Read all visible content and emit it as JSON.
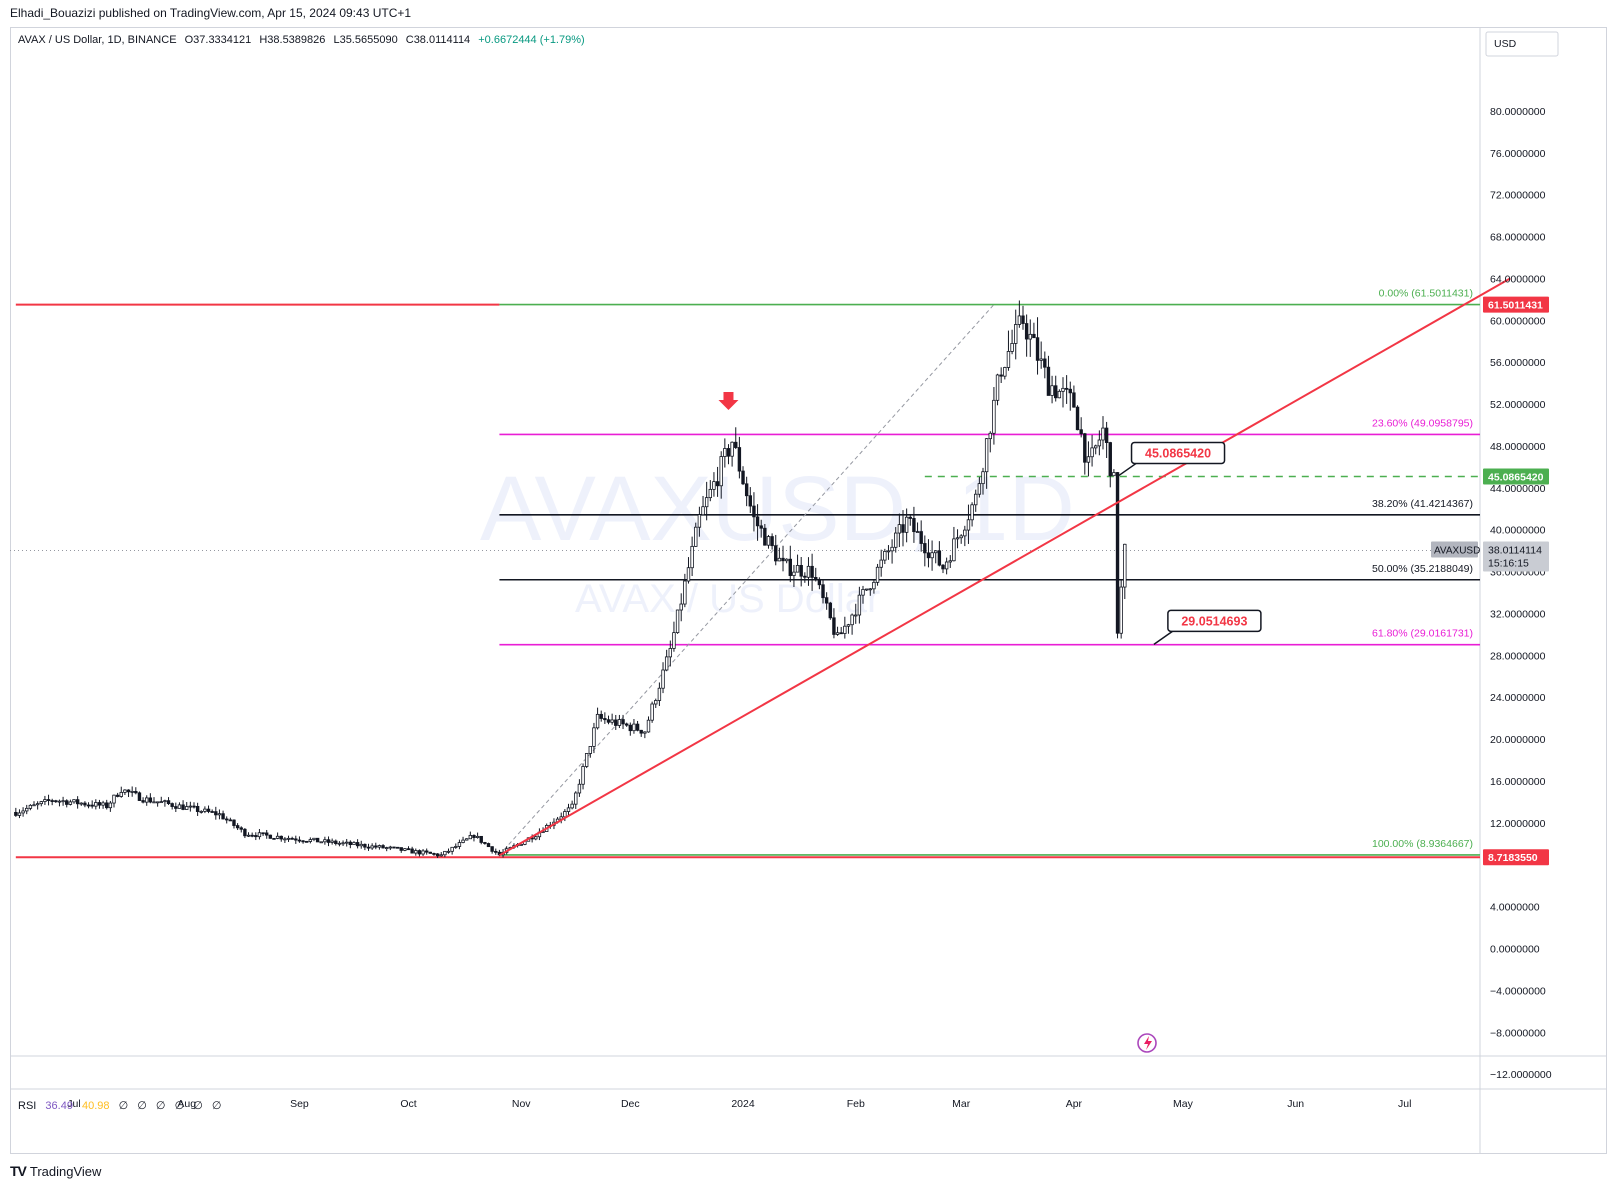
{
  "header": {
    "publisher_line": "Elhadi_Bouazizi published on TradingView.com, Apr 15, 2024 09:43 UTC+1"
  },
  "legend": {
    "symbol": "AVAX / US Dollar, 1D, BINANCE",
    "open": "O37.3334121",
    "high": "H38.5389826",
    "low": "L35.5655090",
    "close": "C38.0114114",
    "change": "+0.6672444 (+1.79%)",
    "change_color": "#089981"
  },
  "watermark": {
    "ticker": "AVAXUSD, 1D",
    "name": "AVAX / US Dollar"
  },
  "currency_label": "USD",
  "chart_data": {
    "type": "candlestick",
    "title": "AVAX / US Dollar, 1D, BINANCE",
    "ylim": [
      -14,
      84
    ],
    "y_ticks": [
      "80.0000000",
      "76.0000000",
      "72.0000000",
      "68.0000000",
      "64.0000000",
      "60.0000000",
      "56.0000000",
      "52.0000000",
      "48.0000000",
      "44.0000000",
      "40.0000000",
      "36.0000000",
      "32.0000000",
      "28.0000000",
      "24.0000000",
      "20.0000000",
      "16.0000000",
      "12.0000000",
      "4.0000000",
      "0.0000000",
      "−4.0000000",
      "−8.0000000",
      "−12.0000000"
    ],
    "y_tick_values": [
      80,
      76,
      72,
      68,
      64,
      60,
      56,
      52,
      48,
      44,
      40,
      36,
      32,
      28,
      24,
      20,
      16,
      12,
      4,
      0,
      -4,
      -8,
      -12
    ],
    "x_ticks": [
      "Jul",
      "Aug",
      "Sep",
      "Oct",
      "Nov",
      "Dec",
      "2024",
      "Feb",
      "Mar",
      "Apr",
      "May",
      "Jun",
      "Jul"
    ],
    "x_tick_dates": [
      "2023-07-01",
      "2023-08-01",
      "2023-09-01",
      "2023-10-01",
      "2023-11-01",
      "2023-12-01",
      "2024-01-01",
      "2024-02-01",
      "2024-03-01",
      "2024-04-01",
      "2024-05-01",
      "2024-06-01",
      "2024-07-01"
    ],
    "date_range": [
      "2023-06-15",
      "2024-07-30"
    ],
    "price_path": [
      {
        "date": "2023-06-15",
        "value": 13.0
      },
      {
        "date": "2023-06-25",
        "value": 14.2
      },
      {
        "date": "2023-07-10",
        "value": 13.6
      },
      {
        "date": "2023-07-14",
        "value": 15.2
      },
      {
        "date": "2023-07-20",
        "value": 14.3
      },
      {
        "date": "2023-08-10",
        "value": 12.8
      },
      {
        "date": "2023-08-17",
        "value": 11.0
      },
      {
        "date": "2023-09-05",
        "value": 10.3
      },
      {
        "date": "2023-09-25",
        "value": 9.6
      },
      {
        "date": "2023-10-10",
        "value": 8.9
      },
      {
        "date": "2023-10-19",
        "value": 10.8
      },
      {
        "date": "2023-10-26",
        "value": 8.94
      },
      {
        "date": "2023-11-05",
        "value": 10.9
      },
      {
        "date": "2023-11-15",
        "value": 13.5
      },
      {
        "date": "2023-11-22",
        "value": 22.0
      },
      {
        "date": "2023-12-05",
        "value": 20.8
      },
      {
        "date": "2023-12-12",
        "value": 28.5
      },
      {
        "date": "2023-12-20",
        "value": 41.0
      },
      {
        "date": "2023-12-29",
        "value": 48.5
      },
      {
        "date": "2024-01-04",
        "value": 41.0
      },
      {
        "date": "2024-01-12",
        "value": 36.5
      },
      {
        "date": "2024-01-20",
        "value": 36.0
      },
      {
        "date": "2024-01-27",
        "value": 29.5
      },
      {
        "date": "2024-02-05",
        "value": 35.0
      },
      {
        "date": "2024-02-15",
        "value": 40.8
      },
      {
        "date": "2024-02-25",
        "value": 36.4
      },
      {
        "date": "2024-03-05",
        "value": 43.0
      },
      {
        "date": "2024-03-12",
        "value": 55.5
      },
      {
        "date": "2024-03-18",
        "value": 60.0
      },
      {
        "date": "2024-03-25",
        "value": 54.0
      },
      {
        "date": "2024-04-01",
        "value": 52.0
      },
      {
        "date": "2024-04-05",
        "value": 46.0
      },
      {
        "date": "2024-04-09",
        "value": 49.5
      },
      {
        "date": "2024-04-12",
        "value": 44.5
      },
      {
        "date": "2024-04-13",
        "value": 30.5
      },
      {
        "date": "2024-04-15",
        "value": 38.01
      }
    ],
    "last_price": {
      "symbol": "AVAXUSD",
      "value": "38.0114114",
      "countdown": "15:16:15"
    },
    "fibonacci": [
      {
        "label": "0.00% (61.5011431)",
        "value": 61.5011431,
        "color": "#4caf50"
      },
      {
        "label": "23.60% (49.0958795)",
        "value": 49.0958795,
        "color": "#e91ed5"
      },
      {
        "label": "38.20% (41.4214367)",
        "value": 41.4214367,
        "color": "#131722"
      },
      {
        "label": "50.00% (35.2188049)",
        "value": 35.2188049,
        "color": "#131722"
      },
      {
        "label": "61.80% (29.0161731)",
        "value": 29.0161731,
        "color": "#e91ed5"
      },
      {
        "label": "100.00% (8.9364667)",
        "value": 8.9364667,
        "color": "#4caf50"
      }
    ],
    "fib_start_date": "2023-10-26",
    "horizontal_lines": [
      {
        "value": 61.5011431,
        "color": "#f23645",
        "label": "61.5011431",
        "start": "2023-06-15",
        "end": "2023-10-26"
      },
      {
        "value": 8.718355,
        "color": "#f23645",
        "label": "8.7183550",
        "start": "2023-06-15",
        "end": "2024-07-30"
      },
      {
        "value": 45.086542,
        "color": "#4caf50",
        "dashed": true,
        "label": "45.0865420",
        "start": "2024-02-20",
        "end": "2024-07-30"
      }
    ],
    "trendline": {
      "color": "#f23645",
      "points": [
        {
          "date": "2023-10-26",
          "value": 8.9
        },
        {
          "date": "2024-07-30",
          "value": 64.0
        }
      ]
    },
    "fib_diagonal": {
      "color": "#9598a1",
      "points": [
        {
          "date": "2023-10-26",
          "value": 8.94
        },
        {
          "date": "2024-03-10",
          "value": 61.5
        }
      ]
    },
    "callouts": [
      {
        "text": "45.0865420",
        "date": "2024-04-13",
        "value": 45.086542
      },
      {
        "text": "29.0514693",
        "date": "2024-04-23",
        "value": 29.0514693
      }
    ],
    "marker": {
      "type": "down-arrow",
      "date": "2023-12-28",
      "value": 52.0,
      "color": "#f23645"
    }
  },
  "rsi": {
    "label": "RSI",
    "value1": "36.49",
    "value2": "40.98",
    "value1_color": "#7e57c2",
    "value2_color": "#ffbe20",
    "empty": [
      "∅",
      "∅",
      "∅",
      "∅",
      "∅",
      "∅"
    ]
  },
  "footer": {
    "brand": "TradingView",
    "logo": "TV"
  }
}
